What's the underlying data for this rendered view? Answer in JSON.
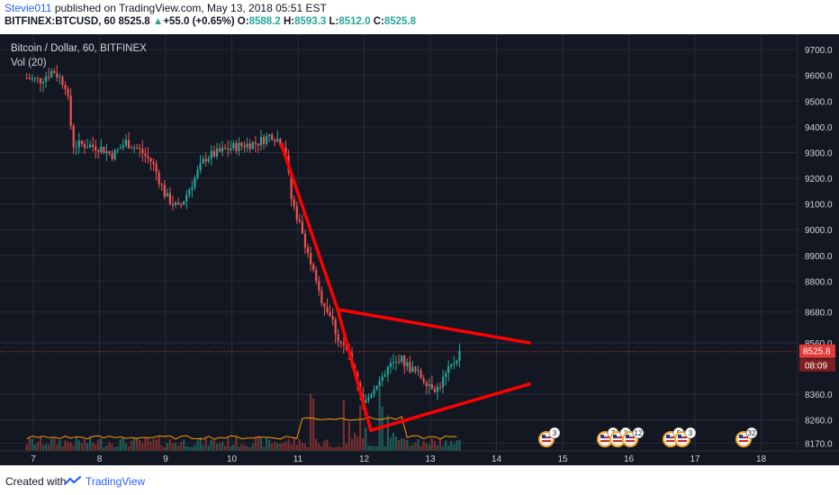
{
  "header": {
    "author": "Stevie011",
    "published_text": " published on TradingView.com, May 13, 2018 05:51 EST"
  },
  "quote": {
    "symbol": "BITFINEX:BTCUSD, 60",
    "last": "8525.8",
    "arrow": "▲",
    "change": "+55.0 (+0.65%)",
    "o_label": "O:",
    "o": "8588.2",
    "h_label": "H:",
    "h": "8593.3",
    "l_label": "L:",
    "l": "8512.0",
    "c_label": "C:",
    "c": "8525.8"
  },
  "legend": {
    "title": "Bitcoin / Dollar, 60, BITFINEX",
    "volume": "Vol (20)"
  },
  "footer": {
    "created": "Created with",
    "brand": "TradingView"
  },
  "colors": {
    "background": "#131722",
    "up": "#26a69a",
    "down": "#ef5350",
    "drawing": "#ff0000",
    "price_label": "#e53935"
  },
  "chart_data": {
    "type": "candlestick",
    "timeframe": "60",
    "x_tick_labels": [
      "7",
      "8",
      "9",
      "10",
      "11",
      "12",
      "13",
      "14",
      "15",
      "16",
      "17",
      "18"
    ],
    "y_tick_labels": [
      "9700.0",
      "9600.0",
      "9500.0",
      "9400.0",
      "9300.0",
      "9200.0",
      "9100.0",
      "9000.0",
      "8900.0",
      "8800.0",
      "8680.0",
      "8560.0",
      "8360.0",
      "8260.0",
      "8170.0"
    ],
    "ylim": [
      8140,
      9760
    ],
    "last_price_label": "8525.8",
    "countdown_label": "08:09",
    "series": [
      {
        "name": "price",
        "values": [
          [
            6.9,
            9590
          ],
          [
            7.1,
            9580
          ],
          [
            7.3,
            9620
          ],
          [
            7.5,
            9560
          ],
          [
            7.6,
            9330
          ],
          [
            7.8,
            9330
          ],
          [
            8.0,
            9320
          ],
          [
            8.2,
            9290
          ],
          [
            8.4,
            9340
          ],
          [
            8.6,
            9310
          ],
          [
            8.8,
            9260
          ],
          [
            9.0,
            9130
          ],
          [
            9.2,
            9080
          ],
          [
            9.4,
            9180
          ],
          [
            9.6,
            9280
          ],
          [
            9.8,
            9300
          ],
          [
            10.0,
            9320
          ],
          [
            10.2,
            9330
          ],
          [
            10.4,
            9340
          ],
          [
            10.6,
            9370
          ],
          [
            10.8,
            9330
          ],
          [
            10.9,
            9120
          ],
          [
            11.1,
            8960
          ],
          [
            11.3,
            8760
          ],
          [
            11.5,
            8660
          ],
          [
            11.6,
            8580
          ],
          [
            11.8,
            8500
          ],
          [
            12.0,
            8320
          ],
          [
            12.2,
            8410
          ],
          [
            12.3,
            8440
          ],
          [
            12.5,
            8510
          ],
          [
            12.7,
            8460
          ],
          [
            12.9,
            8420
          ],
          [
            13.1,
            8380
          ],
          [
            13.3,
            8460
          ],
          [
            13.45,
            8525.8
          ]
        ]
      }
    ],
    "volume_events": [
      "3",
      "7",
      "3",
      "12",
      "5",
      "3",
      "32"
    ],
    "annotations": {
      "trend_lines": [
        {
          "from": [
            10.75,
            9330
          ],
          "to": [
            11.6,
            8690
          ]
        },
        {
          "from": [
            11.6,
            8690
          ],
          "to": [
            12.1,
            8220
          ]
        },
        {
          "from": [
            11.6,
            8690
          ],
          "to": [
            14.5,
            8560
          ]
        },
        {
          "from": [
            12.1,
            8220
          ],
          "to": [
            14.5,
            8400
          ]
        }
      ]
    },
    "grid": true
  }
}
